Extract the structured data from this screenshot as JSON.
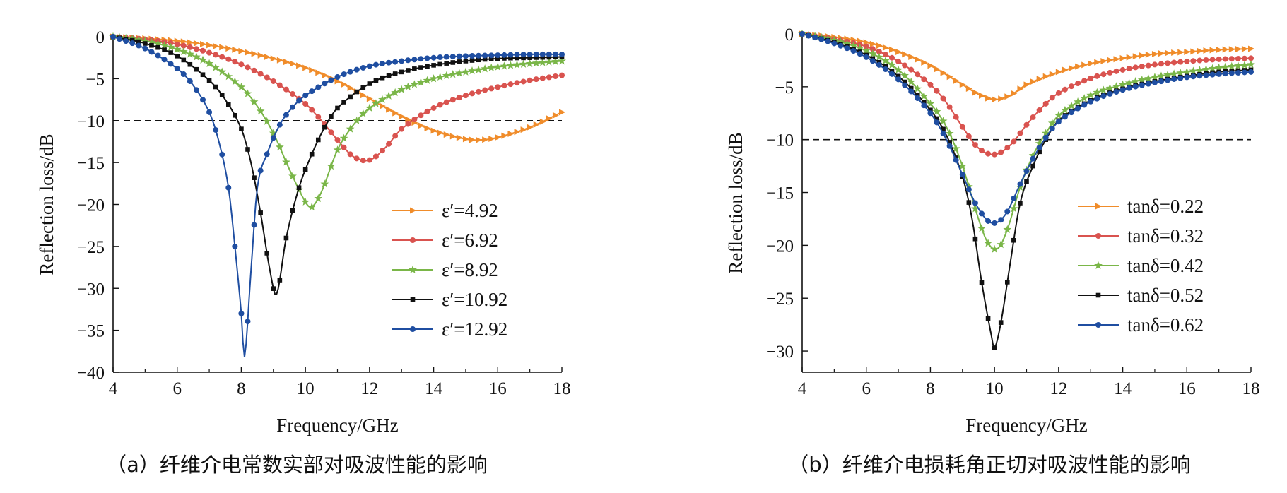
{
  "chart_data": [
    {
      "type": "line",
      "xlabel": "Frequency/GHz",
      "ylabel": "Reflection loss/dB",
      "xlim": [
        4,
        18
      ],
      "ylim": [
        -40,
        0
      ],
      "xticks": [
        "4",
        "6",
        "8",
        "10",
        "12",
        "14",
        "16",
        "18"
      ],
      "yticks": [
        "0",
        "−5",
        "−10",
        "−15",
        "−20",
        "−25",
        "−30",
        "−35",
        "−40"
      ],
      "reference_line": -10,
      "legend_position": "lower-right",
      "caption": "（a）纤维介电常数实部对吸波性能的影响",
      "series": [
        {
          "name": "ε′=4.92",
          "color": "#f08c2a",
          "marker": "triangle-right",
          "x": [
            4,
            5,
            6,
            7,
            8,
            9,
            10,
            11,
            12,
            13,
            14,
            15,
            15.5,
            16,
            17,
            18
          ],
          "y": [
            0,
            -0.2,
            -0.5,
            -1,
            -1.7,
            -2.6,
            -3.7,
            -5.3,
            -7.4,
            -9.5,
            -11.2,
            -12.2,
            -12.3,
            -12.0,
            -10.8,
            -9.0
          ]
        },
        {
          "name": "ε′=6.92",
          "color": "#d9534f",
          "marker": "circle",
          "x": [
            4,
            5,
            6,
            7,
            8,
            9,
            10,
            10.5,
            11,
            11.5,
            12,
            12.5,
            13,
            14,
            15,
            16,
            17,
            18
          ],
          "y": [
            0,
            -0.3,
            -0.9,
            -1.9,
            -3.3,
            -5.3,
            -8.0,
            -10.0,
            -12.3,
            -14.3,
            -14.7,
            -13.2,
            -11.0,
            -8.5,
            -7.0,
            -6.0,
            -5.2,
            -4.6
          ]
        },
        {
          "name": "ε′=8.92",
          "color": "#7ab648",
          "marker": "star",
          "x": [
            4,
            5,
            6,
            7,
            8,
            8.5,
            9,
            9.5,
            10,
            10.2,
            10.5,
            11,
            11.5,
            12,
            13,
            14,
            15,
            16,
            17,
            18
          ],
          "y": [
            0,
            -0.5,
            -1.5,
            -3.2,
            -6.0,
            -8.3,
            -11.5,
            -15.8,
            -19.7,
            -20.3,
            -18.5,
            -13.5,
            -10.5,
            -8.5,
            -6.3,
            -5.0,
            -4.2,
            -3.6,
            -3.2,
            -2.9
          ]
        },
        {
          "name": "ε′=10.92",
          "color": "#111111",
          "marker": "square",
          "x": [
            4,
            5,
            6,
            7,
            7.5,
            8,
            8.3,
            8.6,
            8.9,
            9.1,
            9.4,
            9.8,
            10.2,
            10.6,
            11,
            12,
            13,
            14,
            15,
            16,
            17,
            18
          ],
          "y": [
            0,
            -0.8,
            -2.3,
            -5.2,
            -7.5,
            -11,
            -15,
            -21,
            -28,
            -30.7,
            -24,
            -18,
            -14,
            -10.8,
            -8.5,
            -5.6,
            -4.2,
            -3.4,
            -2.9,
            -2.6,
            -2.5,
            -2.4
          ]
        },
        {
          "name": "ε′=12.92",
          "color": "#1f4ea1",
          "marker": "circle",
          "x": [
            4,
            5,
            6,
            6.5,
            7,
            7.3,
            7.6,
            7.8,
            8.0,
            8.1,
            8.3,
            8.5,
            8.8,
            9.2,
            9.6,
            10,
            11,
            12,
            13,
            14,
            15,
            16,
            17,
            18
          ],
          "y": [
            0,
            -1.4,
            -3.8,
            -5.8,
            -9.0,
            -12.5,
            -18,
            -25,
            -33,
            -38.2,
            -28,
            -18,
            -14,
            -10.5,
            -8.4,
            -7.0,
            -4.8,
            -3.5,
            -2.9,
            -2.5,
            -2.3,
            -2.2,
            -2.1,
            -2.1
          ]
        }
      ]
    },
    {
      "type": "line",
      "xlabel": "Frequency/GHz",
      "ylabel": "Reflection loss/dB",
      "xlim": [
        4,
        18
      ],
      "ylim": [
        -32,
        0
      ],
      "xticks": [
        "4",
        "6",
        "8",
        "10",
        "12",
        "14",
        "16",
        "18"
      ],
      "yticks": [
        "0",
        "−5",
        "−10",
        "−15",
        "−20",
        "−25",
        "−30"
      ],
      "reference_line": -10,
      "legend_position": "lower-right",
      "caption": "（b）纤维介电损耗角正切对吸波性能的影响",
      "series": [
        {
          "name": "tanδ=0.22",
          "color": "#f08c2a",
          "marker": "triangle-right",
          "x": [
            4,
            5,
            6,
            7,
            8,
            9,
            9.5,
            10,
            10.5,
            11,
            12,
            13,
            14,
            15,
            16,
            17,
            18
          ],
          "y": [
            0,
            -0.3,
            -0.8,
            -1.7,
            -3.0,
            -4.8,
            -5.7,
            -6.2,
            -5.8,
            -4.8,
            -3.6,
            -2.8,
            -2.3,
            -1.9,
            -1.7,
            -1.5,
            -1.4
          ]
        },
        {
          "name": "tanδ=0.32",
          "color": "#d9534f",
          "marker": "circle",
          "x": [
            4,
            5,
            6,
            7,
            8,
            8.5,
            9,
            9.5,
            10,
            10.5,
            11,
            11.5,
            12,
            13,
            14,
            15,
            16,
            17,
            18
          ],
          "y": [
            0,
            -0.5,
            -1.2,
            -2.6,
            -4.8,
            -6.5,
            -8.8,
            -10.8,
            -11.4,
            -10.5,
            -8.6,
            -6.9,
            -5.6,
            -4.2,
            -3.4,
            -2.9,
            -2.6,
            -2.4,
            -2.3
          ]
        },
        {
          "name": "tanδ=0.42",
          "color": "#7ab648",
          "marker": "star",
          "x": [
            4,
            5,
            6,
            7,
            8,
            8.5,
            9,
            9.5,
            9.8,
            10.1,
            10.4,
            10.8,
            11.2,
            11.6,
            12,
            13,
            14,
            15,
            16,
            17,
            18
          ],
          "y": [
            0,
            -0.6,
            -1.6,
            -3.4,
            -6.6,
            -8.8,
            -12.5,
            -17.5,
            -19.8,
            -20.3,
            -18.5,
            -14.5,
            -11.5,
            -9.4,
            -7.7,
            -5.8,
            -4.8,
            -4.1,
            -3.6,
            -3.2,
            -2.9
          ]
        },
        {
          "name": "tanδ=0.52",
          "color": "#111111",
          "marker": "square",
          "x": [
            4,
            5,
            6,
            7,
            8,
            8.5,
            9,
            9.3,
            9.6,
            9.9,
            10.0,
            10.2,
            10.5,
            10.8,
            11.2,
            11.6,
            12,
            13,
            14,
            15,
            16,
            17,
            18
          ],
          "y": [
            0,
            -0.8,
            -2.0,
            -4.0,
            -7.2,
            -9.6,
            -13.5,
            -17.5,
            -23.5,
            -28.5,
            -29.7,
            -27.3,
            -21.5,
            -16.0,
            -12.5,
            -10.0,
            -8.2,
            -6.3,
            -5.2,
            -4.5,
            -4.0,
            -3.6,
            -3.4
          ]
        },
        {
          "name": "tanδ=0.62",
          "color": "#1f4ea1",
          "marker": "circle",
          "x": [
            4,
            5,
            6,
            7,
            8,
            8.5,
            9,
            9.4,
            9.8,
            10.1,
            10.4,
            10.8,
            11.2,
            11.6,
            12,
            13,
            14,
            15,
            16,
            17,
            18
          ],
          "y": [
            0,
            -0.9,
            -2.2,
            -4.3,
            -7.5,
            -10.0,
            -13.3,
            -16.0,
            -17.7,
            -17.8,
            -16.8,
            -14.2,
            -11.8,
            -9.8,
            -8.3,
            -6.4,
            -5.3,
            -4.6,
            -4.1,
            -3.8,
            -3.6
          ]
        }
      ]
    }
  ]
}
